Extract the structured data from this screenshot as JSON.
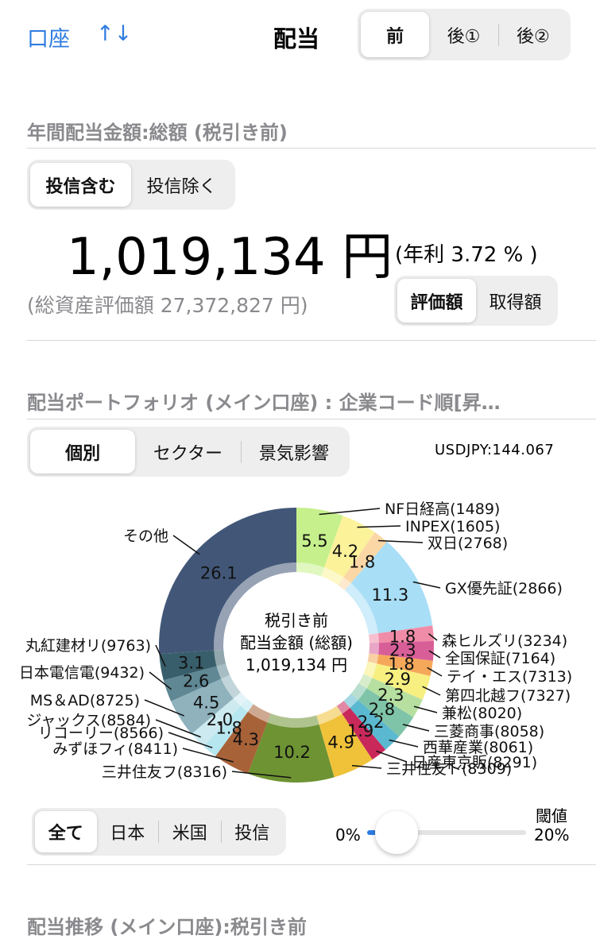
{
  "header": {
    "account_label": "口座",
    "sort_label": "↑↓",
    "title": "配当",
    "tabs": [
      "前",
      "後①",
      "後②"
    ],
    "selected_tab": 0
  },
  "annual": {
    "section_title": "年間配当金額:総額 (税引き前)",
    "filter_tabs": [
      "投信含む",
      "投信除く"
    ],
    "amount": "1,019,134 円",
    "yield_text": "(年利 3.72 % )",
    "total_assets_text": "(総資産評価額 27,372,827 円)",
    "basis_tabs": [
      "評価額",
      "取得額"
    ]
  },
  "portfolio": {
    "section_title": "配当ポートフォリオ (メイン口座) : 企業コード順[昇…",
    "view_tabs": [
      "個別",
      "セクター",
      "景気影響"
    ],
    "fx_rate": "USDJPY:144.067",
    "center_label_1": "税引き前",
    "center_label_2": "配当金額 (総額)",
    "center_label_3": "1,019,134 円"
  },
  "chart_data": {
    "type": "pie",
    "unit": "%",
    "slices": [
      {
        "label": "NF日経高(1489)",
        "value": 5.5,
        "color": "#c6f08c"
      },
      {
        "label": "INPEX(1605)",
        "value": 4.2,
        "color": "#fbf29a"
      },
      {
        "label": "双日(2768)",
        "value": 1.8,
        "color": "#fbd7a6"
      },
      {
        "label": "GX優先証(2866)",
        "value": 11.3,
        "color": "#a8def6"
      },
      {
        "label": "森ヒルズリ(3234)",
        "value": 1.8,
        "color": "#f08ca8"
      },
      {
        "label": "全国保証(7164)",
        "value": 2.3,
        "color": "#d85e98"
      },
      {
        "label": "テイ・エス(7313)",
        "value": 1.8,
        "color": "#f5a85a"
      },
      {
        "label": "第四北越フ(7327)",
        "value": 2.9,
        "color": "#f7ef80"
      },
      {
        "label": "兼松(8020)",
        "value": 2.3,
        "color": "#b6dfa0"
      },
      {
        "label": "三菱商事(8058)",
        "value": 2.8,
        "color": "#7fc4a8"
      },
      {
        "label": "西華産業(8061)",
        "value": 2.2,
        "color": "#5ab8d0"
      },
      {
        "label": "日産東京販(8291)",
        "value": 1.9,
        "color": "#c8285a"
      },
      {
        "label": "三井住友ト(8309)",
        "value": 4.9,
        "color": "#f0c23a"
      },
      {
        "label": "三井住友フ(8316)",
        "value": 10.2,
        "color": "#6e9333"
      },
      {
        "label": "みずほフィ(8411)",
        "value": 4.3,
        "color": "#a86238"
      },
      {
        "label": "リコーリー(8566)",
        "value": 1.8,
        "color": "#b6e6ef"
      },
      {
        "label": "ジャックス(8584)",
        "value": 2.0,
        "color": "#cdeaf0"
      },
      {
        "label": "MS＆AD(8725)",
        "value": 4.5,
        "color": "#8fb2bd"
      },
      {
        "label": "日本電信電(9432)",
        "value": 2.6,
        "color": "#5f8794"
      },
      {
        "label": "丸紅建材リ(9763)",
        "value": 3.1,
        "color": "#385e6b"
      },
      {
        "label": "その他",
        "value": 26.1,
        "color": "#425778"
      }
    ]
  },
  "filters": {
    "region_tabs": [
      "全て",
      "日本",
      "米国",
      "投信"
    ],
    "threshold_label": "閾値",
    "slider_min": "0%",
    "slider_max": "20%",
    "slider_value": 0
  },
  "trend": {
    "section_title": "配当推移 (メイン口座):税引き前"
  }
}
